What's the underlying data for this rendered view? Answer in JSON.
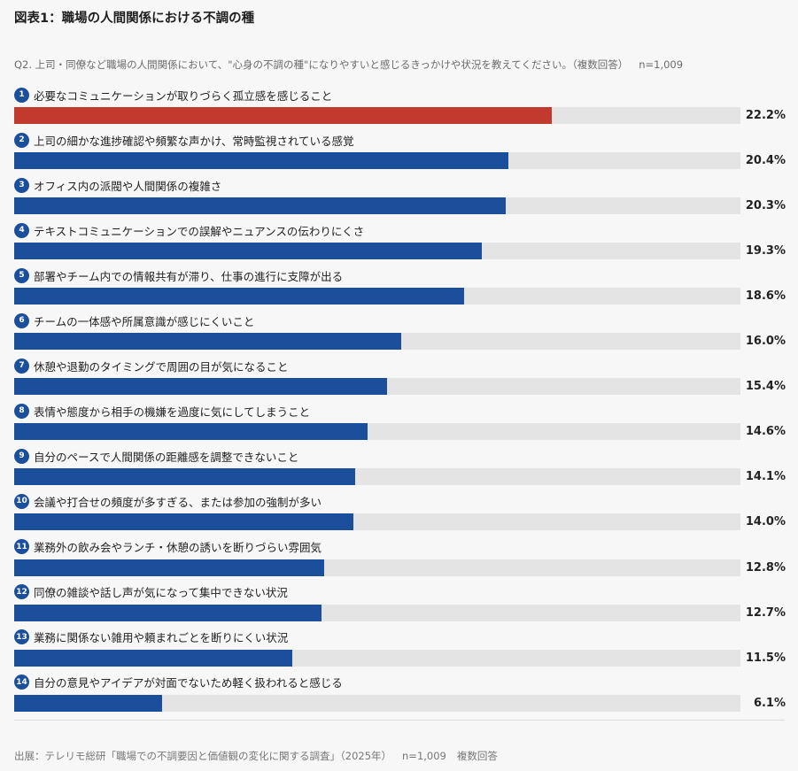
{
  "header": {
    "figure_title": "図表1：職場の人間関係における不調の種",
    "question": "Q2. 上司・同僚など職場の人間関係において、\"心身の不調の種\"になりやすいと感じるきっかけや状況を教えてください。（複数回答）",
    "sample_size": "n=1,009"
  },
  "colors": {
    "highlight_bar": "#c23a2e",
    "bar": "#1b4f9c",
    "track": "#e4e4e4",
    "badge": "#1b4f9c"
  },
  "chart_data": {
    "type": "bar",
    "orientation": "horizontal",
    "unit": "%",
    "xlim": [
      0,
      30
    ],
    "categories": [
      "必要なコミュニケーションが取りづらく孤立感を感じること",
      "上司の細かな進捗確認や頻繁な声かけ、常時監視されている感覚",
      "オフィス内の派閥や人間関係の複雑さ",
      "テキストコミュニケーションでの誤解やニュアンスの伝わりにくさ",
      "部署やチーム内での情報共有が滞り、仕事の進行に支障が出る",
      "チームの一体感や所属意識が感じにくいこと",
      "休憩や退勤のタイミングで周囲の目が気になること",
      "表情や態度から相手の機嫌を過度に気にしてしまうこと",
      "自分のペースで人間関係の距離感を調整できないこと",
      "会議や打合せの頻度が多すぎる、または参加の強制が多い",
      "業務外の飲み会やランチ・休憩の誘いを断りづらい雰囲気",
      "同僚の雑談や話し声が気になって集中できない状況",
      "業務に関係ない雑用や頼まれごとを断りにくい状況",
      "自分の意見やアイデアが対面でないため軽く扱われると感じる"
    ],
    "numbers": [
      "1",
      "2",
      "3",
      "4",
      "5",
      "6",
      "7",
      "8",
      "9",
      "10",
      "11",
      "12",
      "13",
      "14"
    ],
    "values": [
      22.2,
      20.4,
      20.3,
      19.3,
      18.6,
      16.0,
      15.4,
      14.6,
      14.1,
      14.0,
      12.8,
      12.7,
      11.5,
      6.1
    ],
    "value_labels": [
      "22.2%",
      "20.4%",
      "20.3%",
      "19.3%",
      "18.6%",
      "16.0%",
      "15.4%",
      "14.6%",
      "14.1%",
      "14.0%",
      "12.8%",
      "12.7%",
      "11.5%",
      "6.1%"
    ],
    "highlight_index": 0
  },
  "footer": {
    "source": "出展：テレリモ総研「職場での不調要因と価値観の変化に関する調査」（2025年）",
    "sample_size": "n=1,009",
    "note": "複数回答"
  }
}
